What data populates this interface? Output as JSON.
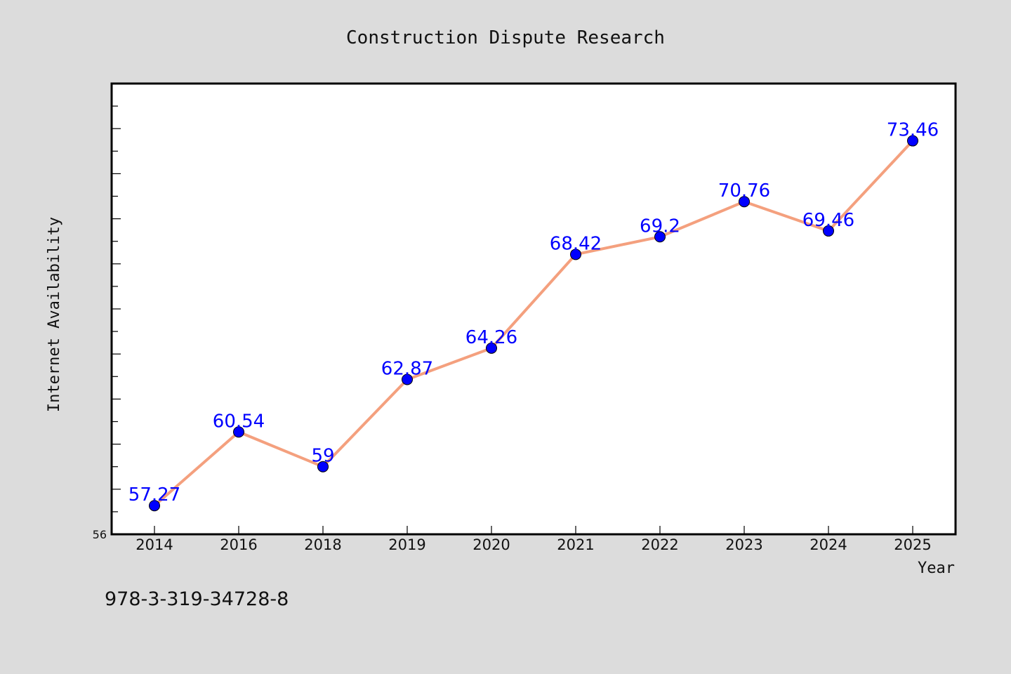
{
  "chart_data": {
    "type": "line",
    "title": "Construction Dispute Research",
    "xlabel": "Year",
    "ylabel": "Internet Availability",
    "categories": [
      "2014",
      "2016",
      "2018",
      "2019",
      "2020",
      "2021",
      "2022",
      "2023",
      "2024",
      "2025"
    ],
    "series": [
      {
        "values": [
          57.27,
          60.54,
          59,
          62.87,
          64.26,
          68.42,
          69.2,
          70.76,
          69.46,
          73.46
        ],
        "data_labels": [
          "57.27",
          "60.54",
          "59",
          "62.87",
          "64.26",
          "68.42",
          "69.2",
          "70.76",
          "69.46",
          "73.46"
        ],
        "line_color": "#f4a07e",
        "marker_color": "#0000ff"
      }
    ],
    "ylim": [
      56,
      76
    ],
    "y_tick_labels": [
      "56"
    ],
    "grid": false,
    "legend": "none"
  },
  "footer": {
    "isbn": "978-3-319-34728-8"
  },
  "colors": {
    "background": "#dcdcdc",
    "plot_background": "#ffffff",
    "frame": "#000000"
  }
}
